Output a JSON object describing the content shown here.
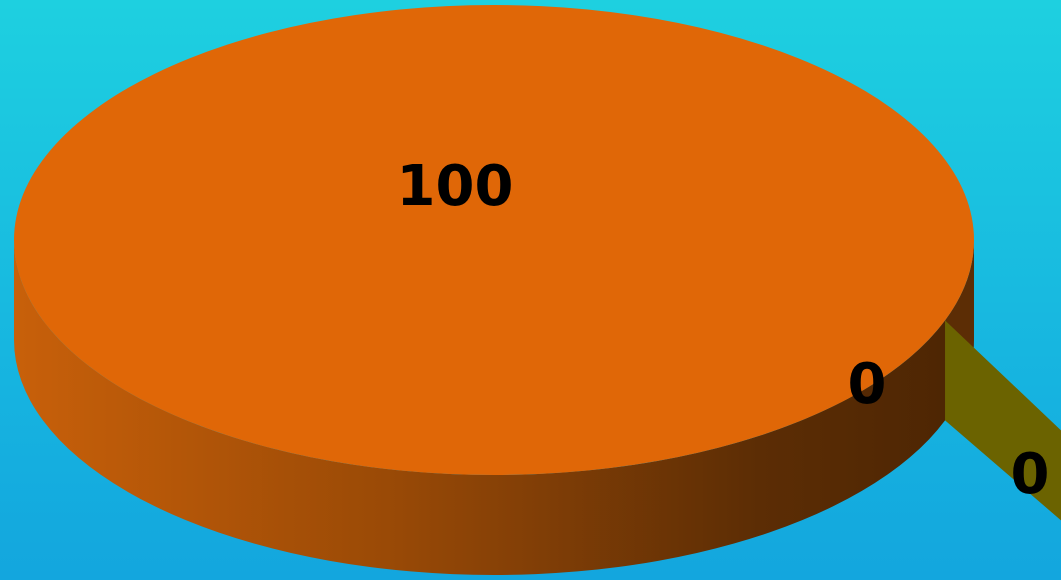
{
  "chart_data": {
    "type": "pie",
    "style": "3d",
    "legend": "none",
    "slices": [
      {
        "label": "100",
        "value": 100,
        "color": "#e06707",
        "side_color": "#b8560a",
        "side_dark": "#5c2d05"
      },
      {
        "label": "0",
        "value": 0,
        "color": "#6b6300",
        "side_color": "#5a5300",
        "side_dark": "#4a4400"
      },
      {
        "label": "0",
        "value": 0,
        "color": "#6b6300",
        "side_color": "#5a5300",
        "side_dark": "#4a4400"
      }
    ]
  }
}
